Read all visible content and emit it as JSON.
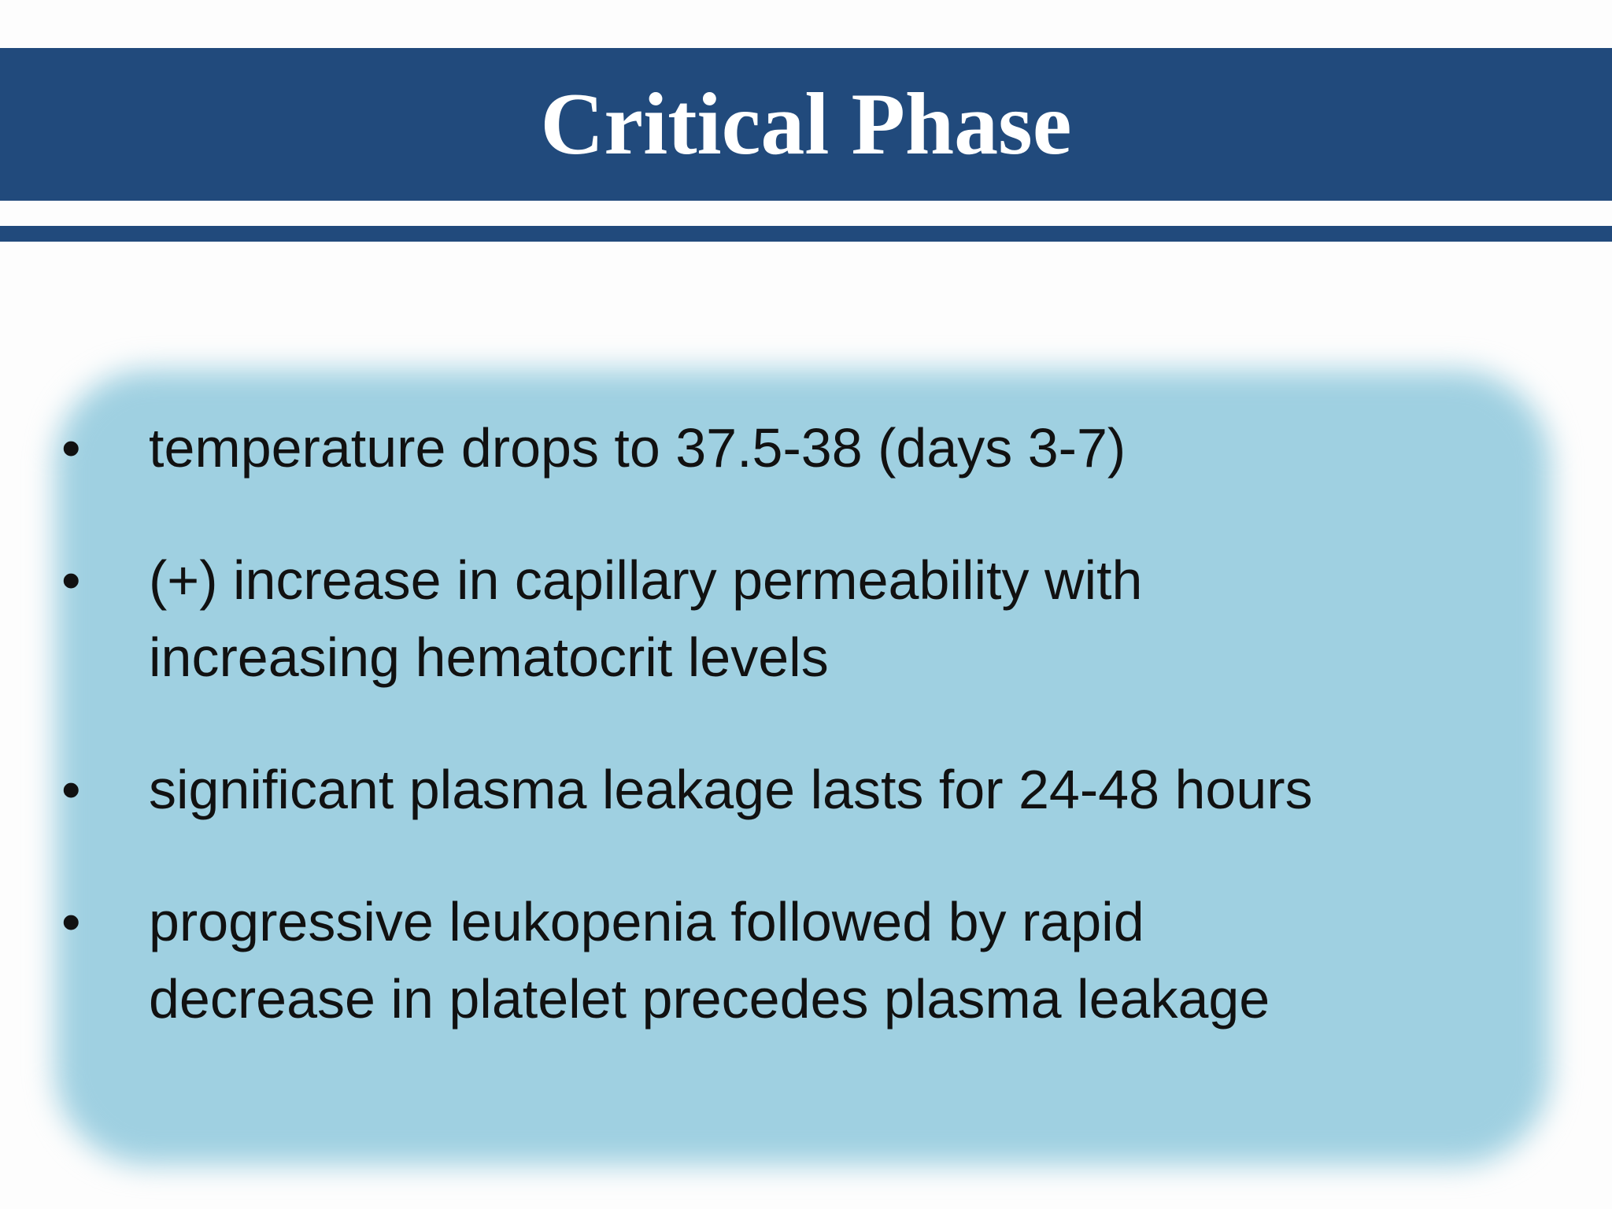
{
  "title": "Critical Phase",
  "bullets": [
    [
      "temperature drops to 37.5-38 (days 3-7)"
    ],
    [
      "(+) increase in capillary permeability with",
      "increasing hematocrit levels"
    ],
    [
      "significant plasma leakage lasts for 24-48 hours"
    ],
    [
      "progressive leukopenia followed by rapid",
      "decrease in platelet precedes plasma leakage"
    ]
  ]
}
